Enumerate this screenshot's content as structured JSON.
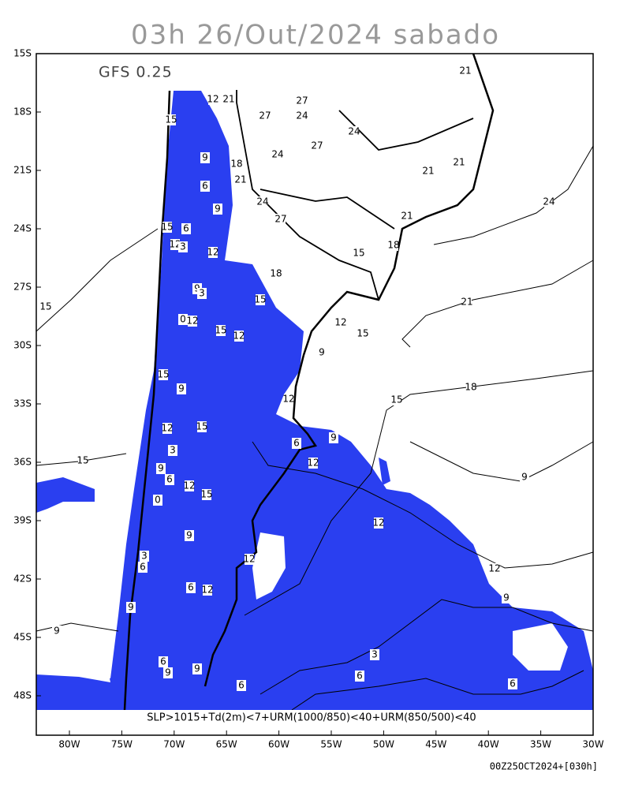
{
  "title": "03h 26/Out/2024 sabado",
  "model": "GFS 0.25",
  "lat_labels": [
    "15S",
    "18S",
    "21S",
    "24S",
    "27S",
    "30S",
    "33S",
    "36S",
    "39S",
    "42S",
    "45S",
    "48S"
  ],
  "lon_labels": [
    "80W",
    "75W",
    "70W",
    "65W",
    "60W",
    "55W",
    "50W",
    "45W",
    "40W",
    "35W",
    "30W"
  ],
  "legend": "SLP>1015+Td(2m)<7+URM(1000/850)<40+URM(850/500)<40",
  "footer": "00Z25OCT2024+[030h]",
  "contour_labels": [
    "21",
    "12",
    "21",
    "27",
    "24",
    "27",
    "15",
    "24",
    "27",
    "24",
    "9",
    "18",
    "21",
    "21",
    "21",
    "6",
    "24",
    "9",
    "24",
    "27",
    "15",
    "6",
    "12",
    "3",
    "12",
    "21",
    "15",
    "18",
    "18",
    "21",
    "15",
    "15",
    "9",
    "3",
    "0",
    "12",
    "12",
    "15",
    "12",
    "15",
    "15",
    "9",
    "18",
    "12",
    "9",
    "15",
    "9",
    "6",
    "12",
    "15",
    "3",
    "9",
    "6",
    "12",
    "0",
    "12",
    "15",
    "15",
    "9",
    "12",
    "3",
    "6",
    "12",
    "6",
    "9",
    "12",
    "9",
    "12",
    "9",
    "9",
    "3",
    "6",
    "9",
    "9",
    "6",
    "6",
    "6"
  ]
}
